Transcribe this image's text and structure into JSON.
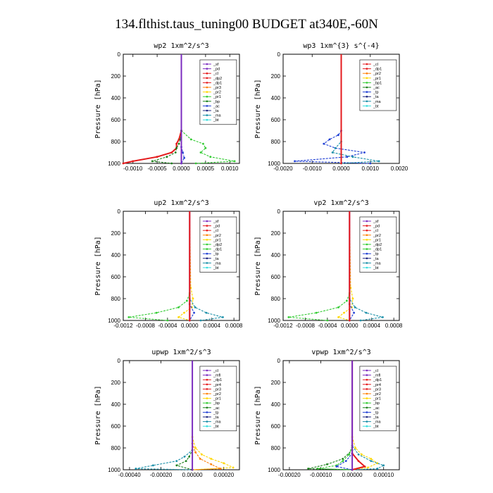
{
  "figure_title": "134.flthist.taus_tuning00  BUDGET at340E,-60N",
  "colors": {
    "red": "#e41a1c",
    "darkred": "#a50f15",
    "purple": "#7b2cbf",
    "orange": "#ff7f00",
    "yellow": "#ffd700",
    "green": "#33cc33",
    "darkgreen": "#1a7f1a",
    "blue": "#1f3fd4",
    "teal": "#1a8fa8",
    "cyan": "#33dddd",
    "black": "#000000",
    "navy": "#1a237e"
  },
  "chart_data": [
    {
      "type": "line",
      "title": "wp2   1xm^2/s^3",
      "ylabel": "Pressure [hPa]",
      "xlim": [
        -0.0012,
        0.0012
      ],
      "ylim": [
        1000,
        0
      ],
      "xticks": [
        -0.001,
        -0.0005,
        0.0,
        0.0005,
        0.001
      ],
      "xtick_labels": [
        "-0.0010",
        "-0.0005",
        "0.0000",
        "0.0005",
        "0.0010"
      ],
      "yticks": [
        0,
        200,
        400,
        600,
        800,
        1000
      ],
      "legend": [
        "_sf",
        "_pd",
        "_cl",
        "_dp2",
        "_dp1",
        "_pr3",
        "_pr2",
        "_pr1",
        "_bp",
        "_ac",
        "_ta",
        "_ma",
        "_bt"
      ],
      "legend_colors": [
        "purple",
        "purple",
        "red",
        "red",
        "red",
        "orange",
        "yellow",
        "green",
        "darkgreen",
        "blue",
        "navy",
        "teal",
        "cyan"
      ],
      "series": [
        {
          "color": "green",
          "y": [
            0,
            700,
            780,
            820,
            860,
            900,
            940,
            980,
            1000
          ],
          "x": [
            0,
            0,
            0.0002,
            0.00045,
            0.0005,
            0.0004,
            0.0006,
            0.0011,
            0.0003
          ]
        },
        {
          "color": "red",
          "y": [
            0,
            700,
            780,
            820,
            860,
            900,
            940,
            980,
            1000
          ],
          "x": [
            0,
            0,
            -5e-05,
            -0.0001,
            -0.0001,
            -0.0002,
            -0.0005,
            -0.001,
            -0.0012
          ]
        },
        {
          "color": "darkgreen",
          "y": [
            0,
            700,
            780,
            820,
            860,
            900,
            940,
            980,
            1000
          ],
          "x": [
            0,
            0,
            -2e-05,
            -5e-05,
            -0.0001,
            -0.00012,
            -0.0003,
            -0.0006,
            -0.0002
          ]
        },
        {
          "color": "blue",
          "y": [
            0,
            850,
            900,
            950,
            1000
          ],
          "x": [
            0,
            0,
            3e-05,
            6e-05,
            0
          ]
        },
        {
          "color": "purple",
          "y": [
            0,
            1000
          ],
          "x": [
            0,
            0
          ]
        }
      ]
    },
    {
      "type": "line",
      "title": "wp3   1xm^{3} s^{-4}",
      "ylabel": "Pressure [hPa]",
      "xlim": [
        -0.002,
        0.002
      ],
      "ylim": [
        1000,
        0
      ],
      "xticks": [
        -0.002,
        -0.001,
        0.0,
        0.001,
        0.002
      ],
      "xtick_labels": [
        "-0.0020",
        "-0.0010",
        "0.0000",
        "0.0010",
        "0.0020"
      ],
      "yticks": [
        0,
        200,
        400,
        600,
        800,
        1000
      ],
      "legend": [
        "_cl",
        "_dp1",
        "_pr2",
        "_pr1",
        "_bp1",
        "_ac",
        "_tp",
        "_ta",
        "_ma",
        "_bt"
      ],
      "legend_colors": [
        "red",
        "red",
        "orange",
        "yellow",
        "green",
        "darkgreen",
        "blue",
        "navy",
        "teal",
        "cyan"
      ],
      "series": [
        {
          "color": "blue",
          "y": [
            0,
            700,
            740,
            780,
            820,
            860,
            900,
            940,
            980,
            1000
          ],
          "x": [
            0,
            0,
            -0.0001,
            -0.0004,
            -0.0006,
            -0.0002,
            0.0008,
            0.0002,
            -0.0016,
            0.001
          ]
        },
        {
          "color": "teal",
          "y": [
            0,
            800,
            860,
            900,
            940,
            980,
            1000
          ],
          "x": [
            0,
            0,
            -0.0002,
            -0.0003,
            0.0004,
            0.0013,
            0
          ]
        },
        {
          "color": "red",
          "y": [
            0,
            1000
          ],
          "x": [
            0,
            0
          ]
        }
      ]
    },
    {
      "type": "line",
      "title": "up2   1xm^2/s^3",
      "ylabel": "Pressure [hPa]",
      "xlim": [
        -0.0012,
        0.0009
      ],
      "ylim": [
        1000,
        0
      ],
      "xticks": [
        -0.0012,
        -0.0008,
        -0.0004,
        0.0,
        0.0004,
        0.0008
      ],
      "xtick_labels": [
        "-0.0012",
        "-0.0008",
        "-0.0004",
        "0.0000",
        "0.0004",
        "0.0008"
      ],
      "yticks": [
        0,
        200,
        400,
        600,
        800,
        1000
      ],
      "legend": [
        "_sf",
        "_pd",
        "_cl",
        "_pr2",
        "_pr1",
        "_dp2",
        "_dp1",
        "_tp",
        "_ta",
        "_ma",
        "_bt"
      ],
      "legend_colors": [
        "purple",
        "red",
        "red",
        "orange",
        "yellow",
        "green",
        "green",
        "blue",
        "navy",
        "teal",
        "cyan"
      ],
      "series": [
        {
          "color": "green",
          "y": [
            0,
            750,
            820,
            880,
            930,
            970,
            1000
          ],
          "x": [
            0,
            0,
            -5e-05,
            -0.0002,
            -0.0006,
            -0.0011,
            -0.0004
          ]
        },
        {
          "color": "yellow",
          "y": [
            0,
            700,
            800,
            880,
            930,
            970,
            1000
          ],
          "x": [
            0,
            2e-05,
            6e-05,
            4e-05,
            -0.0001,
            -0.0002,
            0
          ]
        },
        {
          "color": "teal",
          "y": [
            0,
            800,
            880,
            930,
            970,
            1000
          ],
          "x": [
            0,
            0,
            0.0001,
            0.0003,
            0.0006,
            0.0002
          ]
        },
        {
          "color": "blue",
          "y": [
            0,
            850,
            930,
            1000
          ],
          "x": [
            0,
            0,
            8e-05,
            0
          ]
        },
        {
          "color": "purple",
          "y": [
            0,
            1000
          ],
          "x": [
            0,
            0
          ]
        },
        {
          "color": "red",
          "y": [
            0,
            1000
          ],
          "x": [
            0,
            0
          ]
        }
      ]
    },
    {
      "type": "line",
      "title": "vp2   1xm^2/s^3",
      "ylabel": "Pressure [hPa]",
      "xlim": [
        -0.0012,
        0.0009
      ],
      "ylim": [
        1000,
        0
      ],
      "xticks": [
        -0.0012,
        -0.0008,
        -0.0004,
        0.0,
        0.0004,
        0.0008
      ],
      "xtick_labels": [
        "-0.0012",
        "-0.0008",
        "-0.0004",
        "0.0000",
        "0.0004",
        "0.0008"
      ],
      "yticks": [
        0,
        200,
        400,
        600,
        800,
        1000
      ],
      "legend": [
        "_sf",
        "_pd",
        "_cl",
        "_pr2",
        "_pr1",
        "_dp2",
        "_dp1",
        "_tp",
        "_ta",
        "_ma",
        "_bt"
      ],
      "legend_colors": [
        "purple",
        "red",
        "red",
        "orange",
        "yellow",
        "green",
        "green",
        "blue",
        "navy",
        "teal",
        "cyan"
      ],
      "series": [
        {
          "color": "green",
          "y": [
            0,
            750,
            820,
            880,
            930,
            970,
            1000
          ],
          "x": [
            0,
            0,
            -5e-05,
            -0.0002,
            -0.0006,
            -0.0011,
            -0.0004
          ]
        },
        {
          "color": "yellow",
          "y": [
            0,
            700,
            800,
            880,
            930,
            970,
            1000
          ],
          "x": [
            0,
            2e-05,
            6e-05,
            4e-05,
            -0.0001,
            -0.0002,
            0
          ]
        },
        {
          "color": "teal",
          "y": [
            0,
            800,
            880,
            930,
            970,
            1000
          ],
          "x": [
            0,
            0,
            0.0001,
            0.0003,
            0.0006,
            0.0002
          ]
        },
        {
          "color": "blue",
          "y": [
            0,
            850,
            930,
            1000
          ],
          "x": [
            0,
            0,
            8e-05,
            0
          ]
        },
        {
          "color": "purple",
          "y": [
            0,
            1000
          ],
          "x": [
            0,
            0
          ]
        },
        {
          "color": "red",
          "y": [
            0,
            1000
          ],
          "x": [
            0,
            0
          ]
        }
      ]
    },
    {
      "type": "line",
      "title": "upwp   1xm^2/s^3",
      "ylabel": "Pressure [hPa]",
      "xlim": [
        -0.00044,
        0.0003
      ],
      "ylim": [
        1000,
        0
      ],
      "xticks": [
        -0.0004,
        -0.0002,
        0.0,
        0.0002
      ],
      "xtick_labels": [
        "-0.00040",
        "-0.00020",
        "0.00000",
        "0.00020"
      ],
      "yticks": [
        0,
        200,
        400,
        600,
        800,
        1000
      ],
      "legend": [
        "_cl",
        "_mfl",
        "_dp1",
        "_pr4",
        "_pr3",
        "_pr2",
        "_pr1",
        "_bp",
        "_ac",
        "_tp",
        "_ta",
        "_ma",
        "_bt"
      ],
      "legend_colors": [
        "purple",
        "purple",
        "red",
        "red",
        "red",
        "orange",
        "yellow",
        "green",
        "darkgreen",
        "blue",
        "navy",
        "teal",
        "cyan"
      ],
      "series": [
        {
          "color": "yellow",
          "y": [
            0,
            700,
            800,
            860,
            900,
            940,
            980,
            1000
          ],
          "x": [
            0,
            0,
            2e-05,
            6e-05,
            0.00012,
            0.0002,
            0.00026,
            0
          ]
        },
        {
          "color": "orange",
          "y": [
            0,
            760,
            840,
            900,
            950,
            990,
            1000
          ],
          "x": [
            0,
            0,
            2e-05,
            5e-05,
            0.00012,
            0.00018,
            0
          ]
        },
        {
          "color": "teal",
          "y": [
            0,
            820,
            880,
            920,
            960,
            990,
            1000
          ],
          "x": [
            0,
            0,
            -5e-05,
            -0.0001,
            -0.00025,
            -0.00036,
            0
          ]
        },
        {
          "color": "darkgreen",
          "y": [
            0,
            820,
            880,
            920,
            960,
            1000
          ],
          "x": [
            0,
            0,
            -2e-05,
            -4e-05,
            -0.0001,
            0
          ]
        },
        {
          "color": "purple",
          "y": [
            0,
            1000
          ],
          "x": [
            0,
            0
          ]
        }
      ]
    },
    {
      "type": "line",
      "title": "vpwp   1xm^2/s^3",
      "ylabel": "Pressure [hPa]",
      "xlim": [
        -0.00022,
        0.00015
      ],
      "ylim": [
        1000,
        0
      ],
      "xticks": [
        -0.0002,
        -0.0001,
        0.0,
        0.0001
      ],
      "xtick_labels": [
        "-0.00020",
        "-0.00010",
        "0.00000",
        "0.00010"
      ],
      "yticks": [
        0,
        200,
        400,
        600,
        800,
        1000
      ],
      "legend": [
        "_cl",
        "_mfl",
        "_dp1",
        "_pr4",
        "_pr3",
        "_pr2",
        "_pr1",
        "_bp",
        "_ac",
        "_tp",
        "_ta",
        "_ma",
        "_bt"
      ],
      "legend_colors": [
        "purple",
        "purple",
        "red",
        "red",
        "red",
        "orange",
        "yellow",
        "green",
        "darkgreen",
        "blue",
        "navy",
        "teal",
        "cyan"
      ],
      "series": [
        {
          "color": "yellow",
          "y": [
            0,
            700,
            800,
            860,
            900,
            940,
            980,
            1000
          ],
          "x": [
            0,
            0,
            1e-05,
            3e-05,
            6e-05,
            8e-05,
            5e-05,
            0
          ]
        },
        {
          "color": "green",
          "y": [
            0,
            780,
            860,
            920,
            960,
            990,
            1000
          ],
          "x": [
            0,
            0,
            -1e-05,
            -3e-05,
            -5e-05,
            -0.00011,
            0
          ]
        },
        {
          "color": "teal",
          "y": [
            0,
            780,
            860,
            920,
            960,
            990,
            1000
          ],
          "x": [
            0,
            0,
            2e-05,
            6e-05,
            0.0001,
            8e-05,
            0
          ]
        },
        {
          "color": "darkgreen",
          "y": [
            0,
            820,
            900,
            950,
            990,
            1000
          ],
          "x": [
            0,
            0,
            -3e-05,
            -8e-05,
            -0.00014,
            0
          ]
        },
        {
          "color": "blue",
          "y": [
            0,
            850,
            920,
            970,
            1000
          ],
          "x": [
            0,
            0,
            -2e-05,
            -5e-05,
            0
          ]
        },
        {
          "color": "red",
          "y": [
            0,
            850,
            920,
            970,
            1000
          ],
          "x": [
            0,
            0,
            2e-05,
            4e-05,
            0
          ]
        },
        {
          "color": "purple",
          "y": [
            0,
            1000
          ],
          "x": [
            0,
            0
          ]
        }
      ]
    }
  ]
}
